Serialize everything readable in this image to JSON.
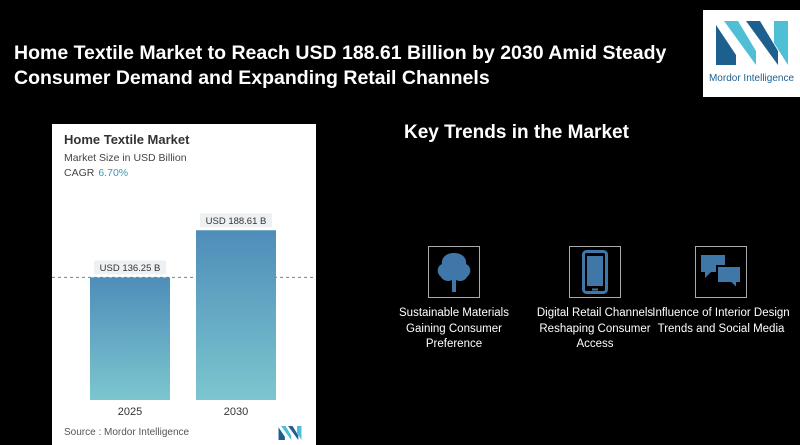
{
  "headline": "Home Textile Market to Reach USD 188.61 Billion by 2030 Amid Steady Consumer Demand and Expanding Retail Channels",
  "logo": {
    "text": "Mordor Intelligence",
    "icon": "mordor-logo-icon",
    "color": "#1d5f8f",
    "accent": "#4fbfd6"
  },
  "chart": {
    "title": "Home Textile Market",
    "subtitle": "Market Size in USD Billion",
    "cagr_label": "CAGR",
    "cagr_value": "6.70%",
    "source": "Source :  Mordor Intelligence"
  },
  "chart_data": {
    "type": "bar",
    "categories": [
      "2025",
      "2030"
    ],
    "values": [
      136.25,
      188.61
    ],
    "data_labels": [
      "USD 136.25 B",
      "USD 188.61 B"
    ],
    "ylim": [
      0,
      200
    ],
    "bar_color_top": "#4e8db9",
    "bar_color_bottom": "#7cc6cf",
    "reference_line": 136.25
  },
  "trends": {
    "title": "Key Trends in the Market",
    "items": [
      {
        "label": "Sustainable Materials Gaining Consumer Preference",
        "icon": "tree-icon"
      },
      {
        "label": "Digital Retail Channels Reshaping Consumer Access",
        "icon": "smartphone-icon"
      },
      {
        "label": "Influence of Interior Design Trends and Social Media",
        "icon": "chat-bubbles-icon"
      }
    ],
    "icon_color": "#3f78a8"
  }
}
